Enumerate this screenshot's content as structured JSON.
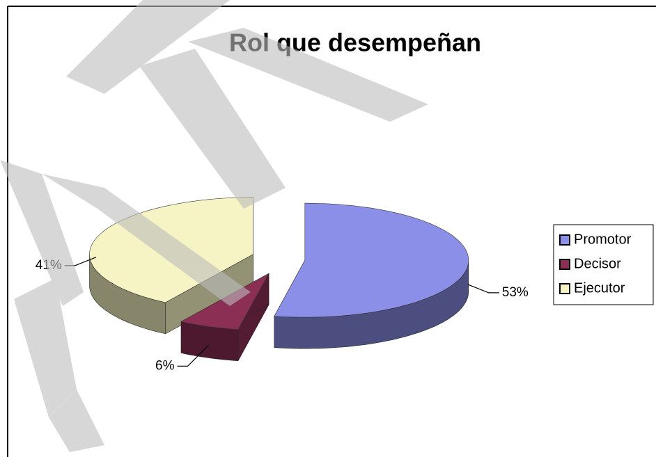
{
  "chart_data": {
    "type": "pie",
    "title": "Rol que desempeñan",
    "categories": [
      "Promotor",
      "Decisor",
      "Ejecutor"
    ],
    "values": [
      53,
      6,
      41
    ],
    "value_labels": [
      "53%",
      "6%",
      "41%"
    ],
    "colors": [
      "#8b8fe8",
      "#8c2f55",
      "#f6f4c4"
    ],
    "legend": "right"
  }
}
